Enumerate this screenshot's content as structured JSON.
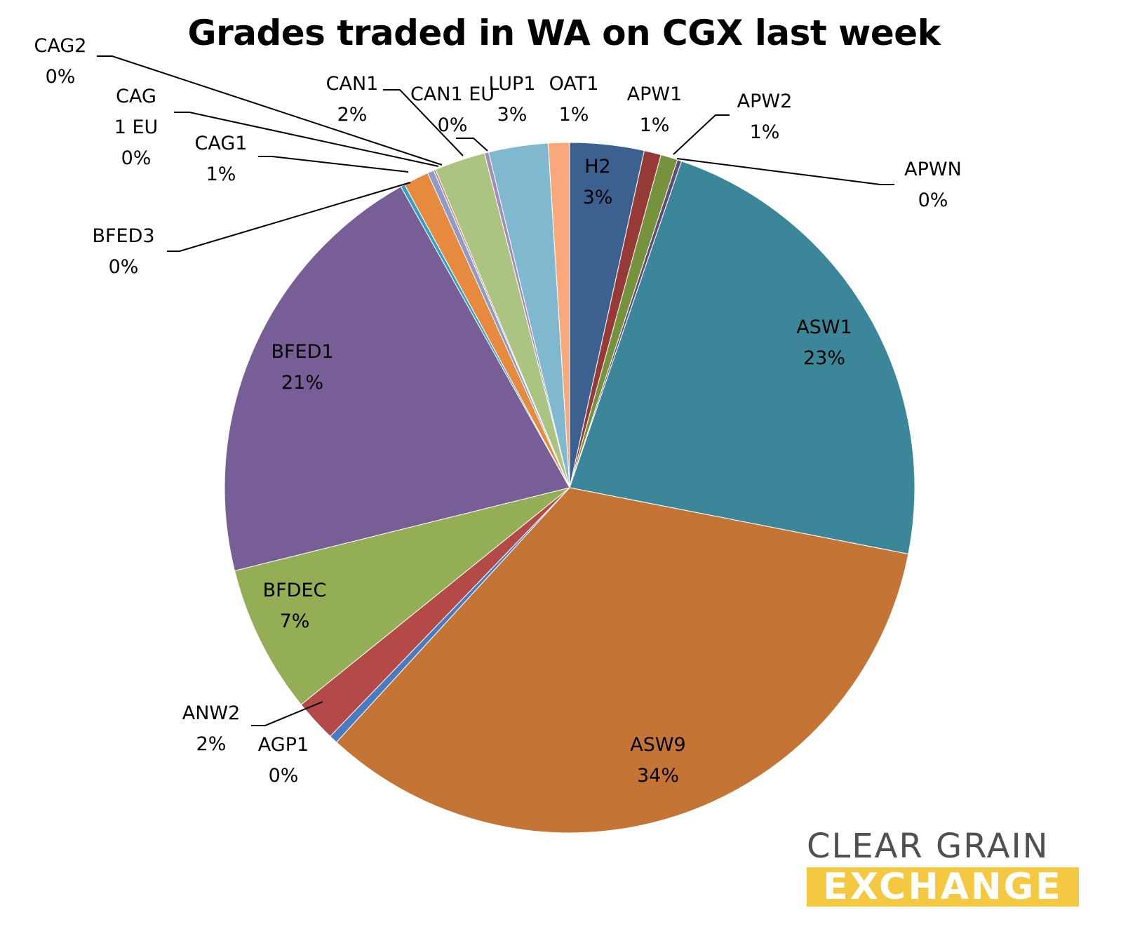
{
  "chart_data": {
    "type": "pie",
    "title": "Grades traded in WA on CGX last week",
    "slices": [
      {
        "name": "H2",
        "label": "H2",
        "pct_label": "3%",
        "value": 3.5,
        "color": "#3c6190"
      },
      {
        "name": "APW1",
        "label": "APW1",
        "pct_label": "1%",
        "value": 0.8,
        "color": "#963a37"
      },
      {
        "name": "APW2",
        "label": "APW2",
        "pct_label": "1%",
        "value": 0.8,
        "color": "#76923c"
      },
      {
        "name": "APWN",
        "label": "APWN",
        "pct_label": "0%",
        "value": 0.2,
        "color": "#604a7b"
      },
      {
        "name": "ASW1",
        "label": "ASW1",
        "pct_label": "23%",
        "value": 23.0,
        "color": "#3b8799"
      },
      {
        "name": "ASW9",
        "label": "ASW9",
        "pct_label": "34%",
        "value": 34.0,
        "color": "#c47535"
      },
      {
        "name": "AGP1",
        "label": "AGP1",
        "pct_label": "0%",
        "value": 0.4,
        "color": "#4a7ac0"
      },
      {
        "name": "ANW2",
        "label": "ANW2",
        "pct_label": "2%",
        "value": 2.0,
        "color": "#b34a47"
      },
      {
        "name": "BFDEC",
        "label": "BFDEC",
        "pct_label": "7%",
        "value": 7.0,
        "color": "#93ae54"
      },
      {
        "name": "BFED1",
        "label": "BFED1",
        "pct_label": "21%",
        "value": 20.9,
        "color": "#785e96"
      },
      {
        "name": "BFED3",
        "label": "BFED3",
        "pct_label": "0%",
        "value": 0.2,
        "color": "#32a0c2"
      },
      {
        "name": "CAG1",
        "label": "CAG1",
        "pct_label": "1%",
        "value": 1.2,
        "color": "#e58a3e"
      },
      {
        "name": "CAG 1 EU",
        "label": "CAG\n1 EU",
        "pct_label": "0%",
        "value": 0.3,
        "color": "#8e9bc7"
      },
      {
        "name": "CAG2",
        "label": "CAG2",
        "pct_label": "0%",
        "value": 0.1,
        "color": "#c68585"
      },
      {
        "name": "CAN1",
        "label": "CAN1",
        "pct_label": "2%",
        "value": 2.4,
        "color": "#acc481"
      },
      {
        "name": "CAN1 EU",
        "label": "CAN1 EU",
        "pct_label": "0%",
        "value": 0.2,
        "color": "#a28cb9"
      },
      {
        "name": "LUP1",
        "label": "LUP1",
        "pct_label": "3%",
        "value": 2.8,
        "color": "#7fb8cf"
      },
      {
        "name": "OAT1",
        "label": "OAT1",
        "pct_label": "1%",
        "value": 1.0,
        "color": "#f8a87a"
      }
    ]
  },
  "logo": {
    "line1": "CLEAR GRAIN",
    "line2": "EXCHANGE"
  }
}
